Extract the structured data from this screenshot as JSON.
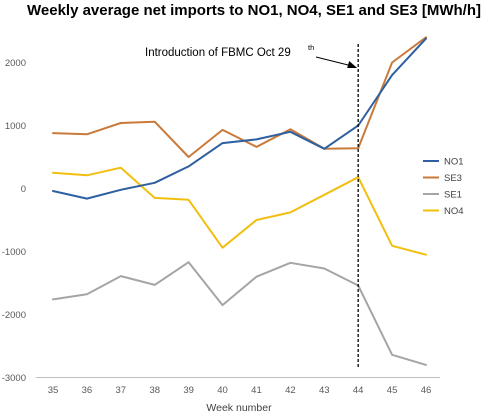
{
  "chart_data": {
    "type": "line",
    "title": "Weekly average net imports to NO1, NO4, SE1 and SE3 [MWh/h]",
    "xlabel": "Week number",
    "ylabel": "",
    "x": [
      35,
      36,
      37,
      38,
      39,
      40,
      41,
      42,
      43,
      44,
      45,
      46
    ],
    "ylim": [
      -3000,
      2500
    ],
    "yticks": [
      2000,
      1000,
      0,
      -1000,
      -2000,
      -3000
    ],
    "grid": false,
    "legend_position": "right",
    "series": [
      {
        "name": "NO1",
        "color": "#2E5FA0",
        "values": [
          -40,
          -160,
          -20,
          90,
          350,
          720,
          780,
          900,
          630,
          1000,
          1800,
          2380
        ]
      },
      {
        "name": "SE3",
        "color": "#C97A3A",
        "values": [
          880,
          860,
          1040,
          1060,
          500,
          930,
          660,
          940,
          630,
          640,
          2000,
          2400
        ]
      },
      {
        "name": "SE1",
        "color": "#A5A5A5",
        "values": [
          -1760,
          -1680,
          -1390,
          -1530,
          -1170,
          -1850,
          -1400,
          -1180,
          -1270,
          -1540,
          -2640,
          -2800
        ]
      },
      {
        "name": "NO4",
        "color": "#F2BE0F",
        "values": [
          250,
          210,
          330,
          -150,
          -180,
          -940,
          -500,
          -380,
          -100,
          180,
          -910,
          -1050
        ]
      }
    ],
    "annotation": {
      "text": "Introduction of FBMC Oct 29",
      "superscript": "th",
      "at_x": 44
    }
  }
}
